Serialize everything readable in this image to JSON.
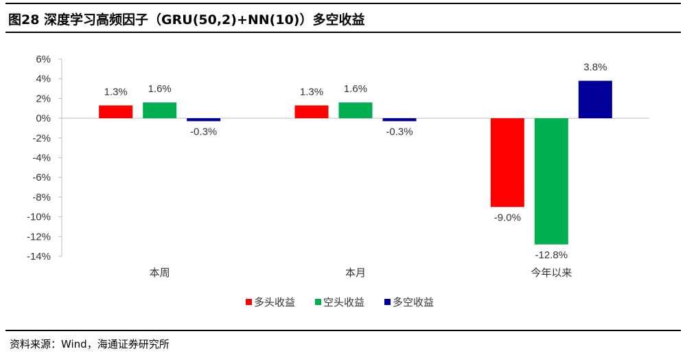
{
  "header": {
    "title": "图28 深度学习高频因子（GRU(50,2)+NN(10)）多空收益"
  },
  "footer": {
    "source": "资料来源：Wind，海通证券研究所"
  },
  "chart_data": {
    "type": "bar",
    "title": "图28 深度学习高频因子（GRU(50,2)+NN(10)）多空收益",
    "xlabel": "",
    "ylabel": "",
    "categories": [
      "本周",
      "本月",
      "今年以来"
    ],
    "series": [
      {
        "name": "多头收益",
        "color": "#ff0000",
        "values": [
          1.3,
          1.3,
          -9.0
        ],
        "labels": [
          "1.3%",
          "1.3%",
          "-9.0%"
        ]
      },
      {
        "name": "空头收益",
        "color": "#00b050",
        "values": [
          1.6,
          1.6,
          -12.8
        ],
        "labels": [
          "1.6%",
          "1.6%",
          "-12.8%"
        ]
      },
      {
        "name": "多空收益",
        "color": "#000099",
        "values": [
          -0.3,
          -0.3,
          3.8
        ],
        "labels": [
          "-0.3%",
          "-0.3%",
          "3.8%"
        ]
      }
    ],
    "ylim": [
      -14,
      6
    ],
    "yticks": [
      6,
      4,
      2,
      0,
      -2,
      -4,
      -6,
      -8,
      -10,
      -12,
      -14
    ],
    "ytick_labels": [
      "6%",
      "4%",
      "2%",
      "0%",
      "-2%",
      "-4%",
      "-6%",
      "-8%",
      "-10%",
      "-12%",
      "-14%"
    ],
    "grid": false,
    "legend": "bottom"
  }
}
